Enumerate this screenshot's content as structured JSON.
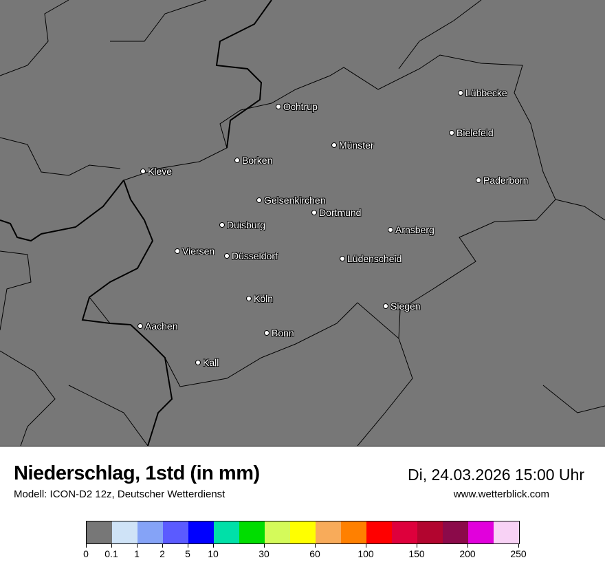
{
  "map": {
    "cities": [
      "Ochtrup",
      "Lübbecke",
      "Bielefeld",
      "Münster",
      "Borken",
      "Kleve",
      "Paderborn",
      "Gelsenkirchen",
      "Dortmund",
      "Duisburg",
      "Arnsberg",
      "Viersen",
      "Düsseldorf",
      "Lüdenscheid",
      "Köln",
      "Siegen",
      "Aachen",
      "Bonn",
      "Kall"
    ],
    "background_color": "#777777"
  },
  "header": {
    "title": "Niederschlag, 1std (in mm)",
    "subtitle": "Modell: ICON-D2 12z, Deutscher Wetterdienst",
    "datetime": "Di, 24.03.2026 15:00 Uhr",
    "website": "www.wetterblick.com"
  },
  "legend": {
    "colors": [
      "#777777",
      "#cfe3f7",
      "#85a3f7",
      "#5b5bff",
      "#0000ff",
      "#00e0a8",
      "#00dd00",
      "#d4fa5a",
      "#ffff00",
      "#f8ab5a",
      "#ff8000",
      "#ff0000",
      "#de003c",
      "#b2052f",
      "#8b0a4a",
      "#e100dc",
      "#f8d2f5"
    ],
    "labels": [
      "0",
      "0.1",
      "1",
      "2",
      "5",
      "10",
      "30",
      "60",
      "100",
      "150",
      "200",
      "250"
    ]
  }
}
